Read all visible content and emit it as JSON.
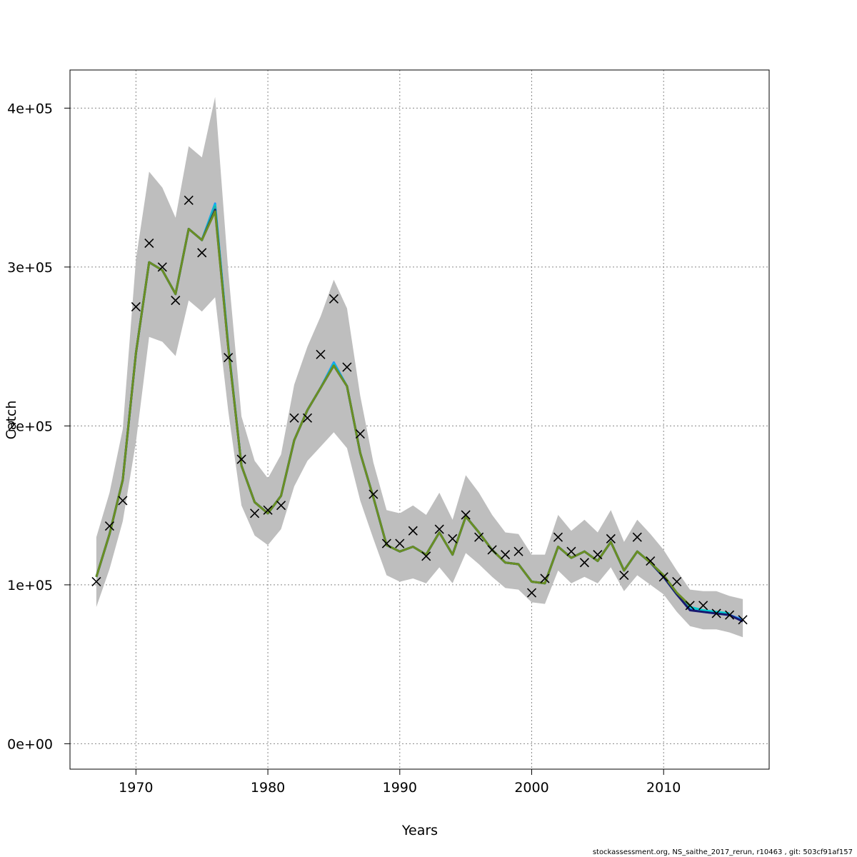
{
  "chart_data": {
    "type": "line",
    "xlabel": "Years",
    "ylabel": "Catch",
    "xlim": [
      1965,
      2018
    ],
    "ylim": [
      -16000,
      424000
    ],
    "x_ticks": [
      1970,
      1980,
      1990,
      2000,
      2010
    ],
    "x_tick_labels": [
      "1970",
      "1980",
      "1990",
      "2000",
      "2010"
    ],
    "y_ticks": [
      0,
      100000,
      200000,
      300000,
      400000
    ],
    "y_tick_labels": [
      "0e+00",
      "1e+05",
      "2e+05",
      "3e+05",
      "4e+05"
    ],
    "grid": true,
    "legend": "none",
    "years": [
      1967,
      1968,
      1969,
      1970,
      1971,
      1972,
      1973,
      1974,
      1975,
      1976,
      1977,
      1978,
      1979,
      1980,
      1981,
      1982,
      1983,
      1984,
      1985,
      1986,
      1987,
      1988,
      1989,
      1990,
      1991,
      1992,
      1993,
      1994,
      1995,
      1996,
      1997,
      1998,
      1999,
      2000,
      2001,
      2002,
      2003,
      2004,
      2005,
      2006,
      2007,
      2008,
      2009,
      2010,
      2011,
      2012,
      2013,
      2014,
      2015,
      2016
    ],
    "confidence_band": {
      "color": "#bebebe",
      "lower": [
        86000,
        110000,
        140000,
        190000,
        256000,
        253000,
        244000,
        279000,
        272000,
        281000,
        209000,
        150000,
        131000,
        125000,
        135000,
        162000,
        178000,
        187000,
        196000,
        186000,
        153000,
        129000,
        106000,
        102000,
        104000,
        101000,
        111000,
        101000,
        120000,
        113000,
        105000,
        98000,
        97000,
        89000,
        88000,
        109000,
        101000,
        105000,
        101000,
        111000,
        96000,
        106000,
        100000,
        94000,
        83000,
        74000,
        72000,
        72000,
        70000,
        67000
      ],
      "upper": [
        130000,
        158000,
        198000,
        305000,
        360000,
        350000,
        331000,
        376000,
        369000,
        407000,
        297000,
        206000,
        178000,
        167000,
        182000,
        226000,
        250000,
        269000,
        292000,
        274000,
        219000,
        177000,
        147000,
        145000,
        150000,
        144000,
        158000,
        141000,
        169000,
        158000,
        144000,
        133000,
        132000,
        119000,
        119000,
        144000,
        134000,
        141000,
        133000,
        147000,
        127000,
        141000,
        132000,
        122000,
        109000,
        97000,
        96000,
        96000,
        93000,
        91000
      ]
    },
    "series": [
      {
        "color": "#1e90ff",
        "values": [
          105000,
          132000,
          166000,
          246000,
          303000,
          298000,
          283000,
          324000,
          317000,
          340000,
          250000,
          175000,
          152000,
          145000,
          156000,
          191000,
          210000,
          224000,
          240000,
          225000,
          183000,
          155000,
          125000,
          121000,
          124000,
          119000,
          133000,
          119000,
          143000,
          133000,
          122000,
          114000,
          113000,
          102000,
          101000,
          124000,
          117000,
          121000,
          115000,
          127000,
          109000,
          121000,
          114000,
          105000,
          94000,
          85000,
          83000,
          82000,
          81000,
          78000
        ]
      },
      {
        "color": "#00ced1",
        "values": [
          105000,
          132000,
          166000,
          246000,
          303000,
          298000,
          283000,
          324000,
          317000,
          339000,
          250000,
          175000,
          152000,
          145000,
          156000,
          191000,
          210000,
          224000,
          239000,
          225000,
          183000,
          155000,
          125000,
          121000,
          124000,
          119000,
          133000,
          119000,
          143000,
          133000,
          122000,
          114000,
          113000,
          102000,
          101000,
          124000,
          117000,
          121000,
          115000,
          127000,
          109000,
          121000,
          114000,
          105000,
          94000,
          86000,
          84000,
          83000,
          82000,
          null
        ]
      },
      {
        "color": "#20b2aa",
        "values": [
          105000,
          132000,
          166000,
          246000,
          303000,
          298000,
          283000,
          324000,
          317000,
          338000,
          250000,
          175000,
          152000,
          145000,
          156000,
          191000,
          210000,
          224000,
          238000,
          225000,
          183000,
          155000,
          125000,
          121000,
          124000,
          119000,
          133000,
          119000,
          143000,
          133000,
          122000,
          114000,
          113000,
          102000,
          101000,
          124000,
          117000,
          121000,
          115000,
          127000,
          109000,
          121000,
          114000,
          106000,
          95000,
          86000,
          null,
          null,
          null,
          null
        ]
      },
      {
        "color": "#191970",
        "values": [
          105000,
          132000,
          166000,
          246000,
          303000,
          298000,
          283000,
          324000,
          317000,
          336000,
          249000,
          175000,
          152000,
          145000,
          156000,
          191000,
          210000,
          224000,
          238000,
          225000,
          183000,
          155000,
          125000,
          121000,
          124000,
          119000,
          133000,
          119000,
          143000,
          133000,
          122000,
          114000,
          113000,
          102000,
          101000,
          124000,
          117000,
          121000,
          115000,
          127000,
          109000,
          121000,
          114000,
          105000,
          94000,
          84000,
          83000,
          82000,
          81000,
          77000
        ]
      },
      {
        "color": "#6b8e23",
        "values": [
          105000,
          132000,
          166000,
          246000,
          303000,
          298000,
          283000,
          324000,
          317000,
          335000,
          249000,
          175000,
          152000,
          145000,
          156000,
          191000,
          210000,
          224000,
          238000,
          225000,
          183000,
          155000,
          125000,
          121000,
          124000,
          119000,
          133000,
          119000,
          143000,
          133000,
          122000,
          114000,
          113000,
          102000,
          101000,
          124000,
          117000,
          121000,
          115000,
          127000,
          109000,
          121000,
          114000,
          106000,
          95000,
          87000,
          null,
          null,
          null,
          null
        ]
      }
    ],
    "observations": {
      "marker": "x",
      "color": "#000000",
      "values": [
        102000,
        137000,
        153000,
        275000,
        315000,
        300000,
        279000,
        342000,
        309000,
        null,
        243000,
        179000,
        145000,
        147000,
        150000,
        205000,
        205000,
        245000,
        280000,
        237000,
        195000,
        157000,
        126000,
        126000,
        134000,
        118000,
        135000,
        129000,
        144000,
        130000,
        122000,
        119000,
        121000,
        95000,
        104000,
        130000,
        121000,
        114000,
        119000,
        129000,
        106000,
        130000,
        115000,
        105000,
        102000,
        87000,
        87000,
        82000,
        81000,
        78000
      ]
    }
  },
  "footer": {
    "note": "stockassessment.org, NS_saithe_2017_rerun, r10463 , git: 503cf91af157"
  }
}
